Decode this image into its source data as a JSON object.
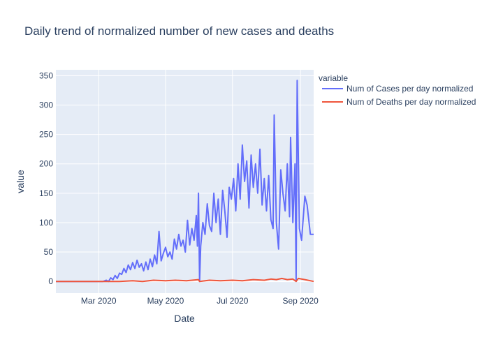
{
  "chart_data": {
    "type": "line",
    "title": "Daily trend of normalized number of new cases and deaths",
    "xlabel": "Date",
    "ylabel": "value",
    "x_range": [
      "2020-01-22",
      "2020-09-13"
    ],
    "ylim": [
      -20,
      360
    ],
    "y_ticks": [
      0,
      50,
      100,
      150,
      200,
      250,
      300,
      350
    ],
    "x_ticks": [
      {
        "date": "2020-03-01",
        "label": "Mar 2020"
      },
      {
        "date": "2020-05-01",
        "label": "May 2020"
      },
      {
        "date": "2020-07-01",
        "label": "Jul 2020"
      },
      {
        "date": "2020-09-01",
        "label": "Sep 2020"
      }
    ],
    "grid": true,
    "legend": {
      "title": "variable",
      "placement": "right"
    },
    "series": [
      {
        "name": "Num of Cases per day normalized",
        "color": "#636efa",
        "points": [
          [
            "2020-01-22",
            0
          ],
          [
            "2020-02-10",
            0
          ],
          [
            "2020-03-05",
            0
          ],
          [
            "2020-03-08",
            2
          ],
          [
            "2020-03-10",
            0
          ],
          [
            "2020-03-12",
            6
          ],
          [
            "2020-03-14",
            3
          ],
          [
            "2020-03-16",
            10
          ],
          [
            "2020-03-18",
            5
          ],
          [
            "2020-03-20",
            14
          ],
          [
            "2020-03-22",
            12
          ],
          [
            "2020-03-24",
            22
          ],
          [
            "2020-03-26",
            15
          ],
          [
            "2020-03-28",
            28
          ],
          [
            "2020-03-30",
            20
          ],
          [
            "2020-04-01",
            32
          ],
          [
            "2020-04-03",
            22
          ],
          [
            "2020-04-05",
            36
          ],
          [
            "2020-04-07",
            24
          ],
          [
            "2020-04-09",
            30
          ],
          [
            "2020-04-11",
            18
          ],
          [
            "2020-04-13",
            33
          ],
          [
            "2020-04-15",
            20
          ],
          [
            "2020-04-17",
            38
          ],
          [
            "2020-04-19",
            25
          ],
          [
            "2020-04-21",
            45
          ],
          [
            "2020-04-23",
            30
          ],
          [
            "2020-04-25",
            85
          ],
          [
            "2020-04-27",
            35
          ],
          [
            "2020-04-29",
            48
          ],
          [
            "2020-05-01",
            58
          ],
          [
            "2020-05-03",
            42
          ],
          [
            "2020-05-05",
            50
          ],
          [
            "2020-05-07",
            38
          ],
          [
            "2020-05-09",
            72
          ],
          [
            "2020-05-11",
            55
          ],
          [
            "2020-05-13",
            80
          ],
          [
            "2020-05-15",
            60
          ],
          [
            "2020-05-17",
            70
          ],
          [
            "2020-05-19",
            50
          ],
          [
            "2020-05-21",
            104
          ],
          [
            "2020-05-23",
            62
          ],
          [
            "2020-05-25",
            90
          ],
          [
            "2020-05-27",
            70
          ],
          [
            "2020-05-29",
            112
          ],
          [
            "2020-05-30",
            60
          ],
          [
            "2020-05-31",
            150
          ],
          [
            "2020-06-01",
            0
          ],
          [
            "2020-06-02",
            60
          ],
          [
            "2020-06-04",
            100
          ],
          [
            "2020-06-06",
            80
          ],
          [
            "2020-06-08",
            132
          ],
          [
            "2020-06-10",
            95
          ],
          [
            "2020-06-12",
            85
          ],
          [
            "2020-06-14",
            150
          ],
          [
            "2020-06-16",
            100
          ],
          [
            "2020-06-18",
            140
          ],
          [
            "2020-06-20",
            80
          ],
          [
            "2020-06-22",
            155
          ],
          [
            "2020-06-24",
            120
          ],
          [
            "2020-06-26",
            75
          ],
          [
            "2020-06-28",
            160
          ],
          [
            "2020-06-30",
            140
          ],
          [
            "2020-07-02",
            175
          ],
          [
            "2020-07-04",
            120
          ],
          [
            "2020-07-06",
            200
          ],
          [
            "2020-07-08",
            140
          ],
          [
            "2020-07-10",
            232
          ],
          [
            "2020-07-12",
            170
          ],
          [
            "2020-07-14",
            205
          ],
          [
            "2020-07-16",
            125
          ],
          [
            "2020-07-18",
            215
          ],
          [
            "2020-07-20",
            160
          ],
          [
            "2020-07-22",
            200
          ],
          [
            "2020-07-24",
            150
          ],
          [
            "2020-07-26",
            225
          ],
          [
            "2020-07-28",
            130
          ],
          [
            "2020-07-30",
            175
          ],
          [
            "2020-08-01",
            120
          ],
          [
            "2020-08-03",
            180
          ],
          [
            "2020-08-05",
            105
          ],
          [
            "2020-08-07",
            90
          ],
          [
            "2020-08-08",
            283
          ],
          [
            "2020-08-10",
            100
          ],
          [
            "2020-08-12",
            55
          ],
          [
            "2020-08-14",
            190
          ],
          [
            "2020-08-16",
            150
          ],
          [
            "2020-08-18",
            120
          ],
          [
            "2020-08-20",
            200
          ],
          [
            "2020-08-22",
            110
          ],
          [
            "2020-08-23",
            245
          ],
          [
            "2020-08-25",
            100
          ],
          [
            "2020-08-27",
            200
          ],
          [
            "2020-08-28",
            0
          ],
          [
            "2020-08-29",
            342
          ],
          [
            "2020-08-31",
            90
          ],
          [
            "2020-09-02",
            70
          ],
          [
            "2020-09-05",
            145
          ],
          [
            "2020-09-07",
            130
          ],
          [
            "2020-09-10",
            80
          ],
          [
            "2020-09-13",
            80
          ]
        ]
      },
      {
        "name": "Num of Deaths per day normalized",
        "color": "#ef553b",
        "points": [
          [
            "2020-01-22",
            0
          ],
          [
            "2020-03-20",
            0
          ],
          [
            "2020-04-01",
            1
          ],
          [
            "2020-04-10",
            0
          ],
          [
            "2020-04-20",
            2
          ],
          [
            "2020-05-01",
            1
          ],
          [
            "2020-05-10",
            2
          ],
          [
            "2020-05-20",
            1
          ],
          [
            "2020-05-31",
            3
          ],
          [
            "2020-06-01",
            0
          ],
          [
            "2020-06-10",
            2
          ],
          [
            "2020-06-20",
            1
          ],
          [
            "2020-07-01",
            2
          ],
          [
            "2020-07-10",
            1
          ],
          [
            "2020-07-20",
            3
          ],
          [
            "2020-07-30",
            2
          ],
          [
            "2020-08-05",
            4
          ],
          [
            "2020-08-10",
            3
          ],
          [
            "2020-08-15",
            5
          ],
          [
            "2020-08-20",
            3
          ],
          [
            "2020-08-25",
            4
          ],
          [
            "2020-08-28",
            0
          ],
          [
            "2020-08-30",
            5
          ],
          [
            "2020-09-05",
            3
          ],
          [
            "2020-09-13",
            0
          ]
        ]
      }
    ]
  }
}
